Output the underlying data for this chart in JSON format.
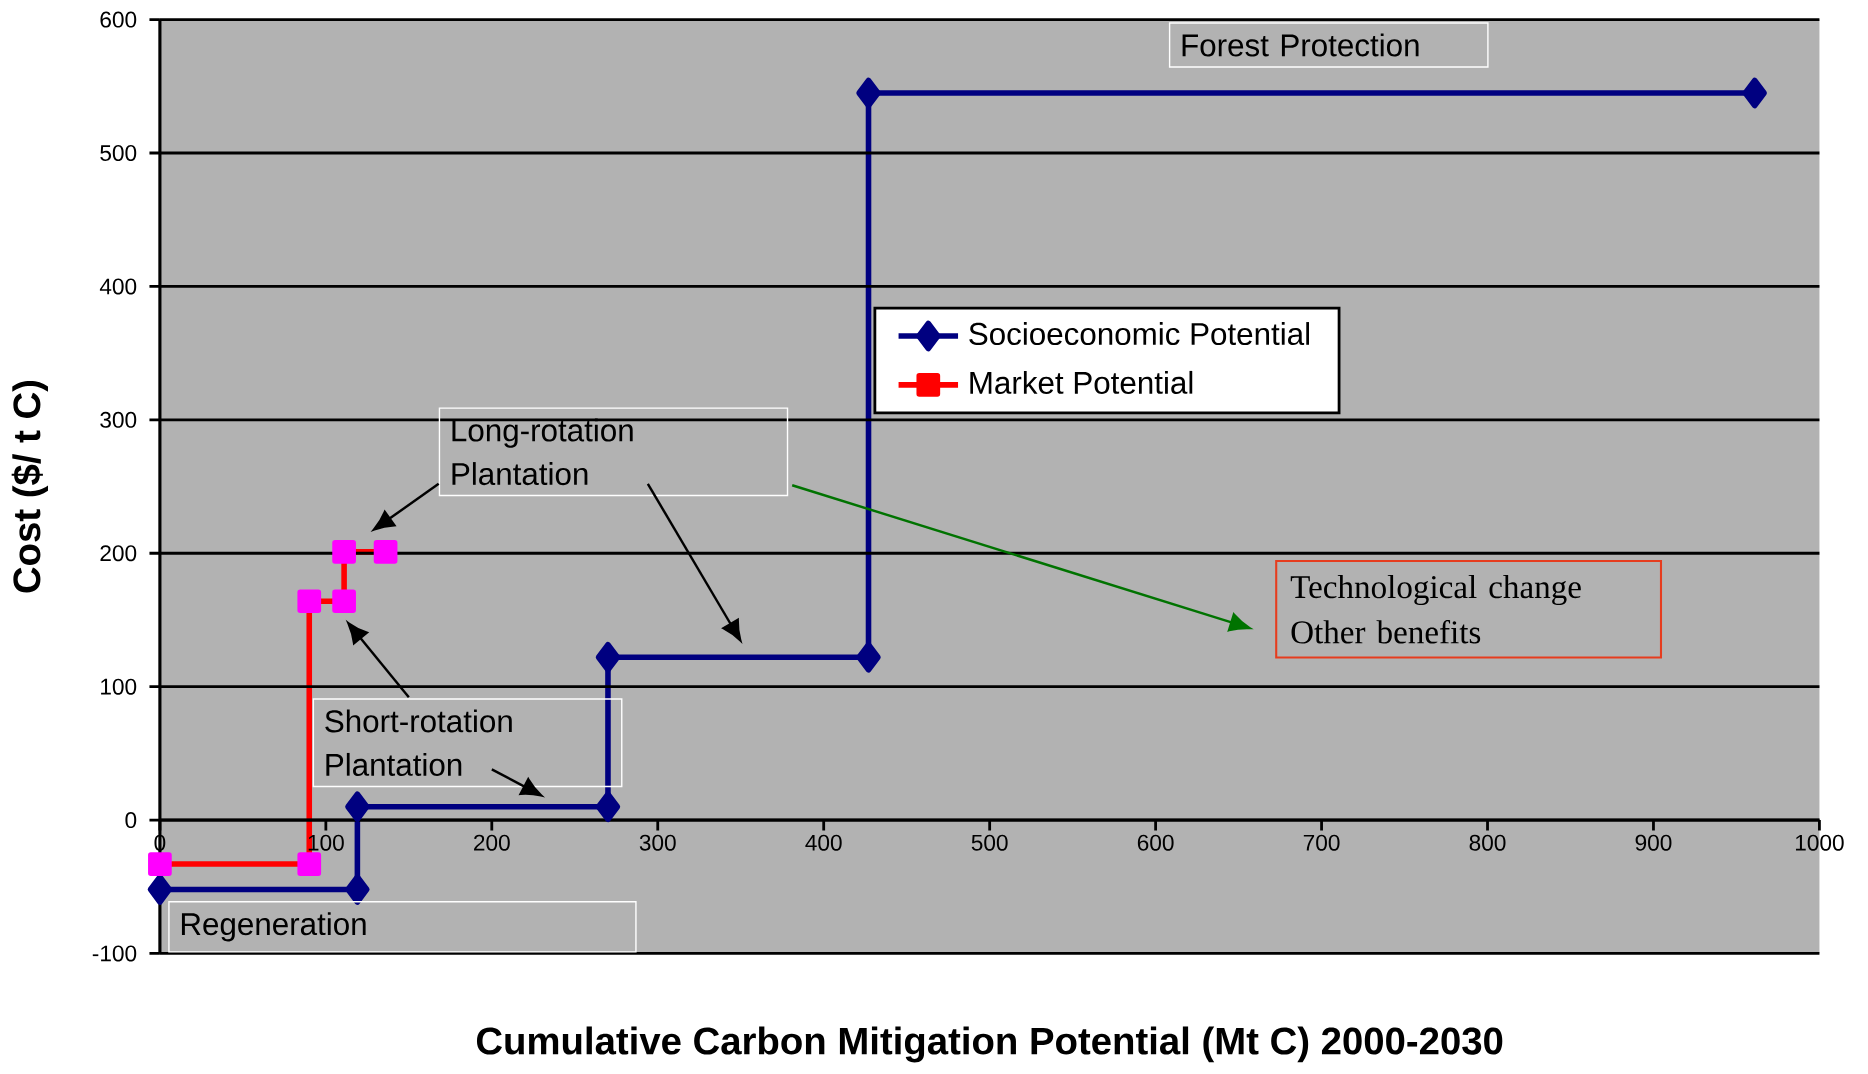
{
  "chart_data": {
    "type": "line",
    "xlabel": "Cumulative Carbon Mitigation Potential (Mt C) 2000-2030",
    "ylabel": "Cost ($/ t C)",
    "xlim": [
      0,
      1000
    ],
    "ylim": [
      -100,
      600
    ],
    "xticks": [
      0,
      100,
      200,
      300,
      400,
      500,
      600,
      700,
      800,
      900,
      1000
    ],
    "yticks": [
      -100,
      0,
      100,
      200,
      300,
      400,
      500,
      600
    ],
    "grid": "y",
    "legend": "right",
    "series": [
      {
        "name": "Socioeconomic Potential",
        "color": "#000080",
        "marker": "diamond",
        "x": [
          0,
          119,
          119,
          270,
          270,
          427,
          427,
          961
        ],
        "values": [
          -52,
          -52,
          10,
          10,
          122,
          122,
          545,
          545
        ]
      },
      {
        "name": "Market Potential",
        "color": "#ff0000",
        "colors": [
          "#ff00ff",
          "#ff00ff",
          "#ff00ff",
          "#ff00ff",
          "#ff00ff",
          "#ff00ff"
        ],
        "marker": "square",
        "x": [
          0,
          90,
          90,
          111,
          111,
          136
        ],
        "values": [
          -33,
          -33,
          164,
          164,
          201,
          201
        ]
      }
    ],
    "annotations": [
      "Forest Protection",
      "Long-rotation Plantation",
      "Short-rotation Plantation",
      "Regeneration",
      "Technological change Other benefits"
    ]
  }
}
